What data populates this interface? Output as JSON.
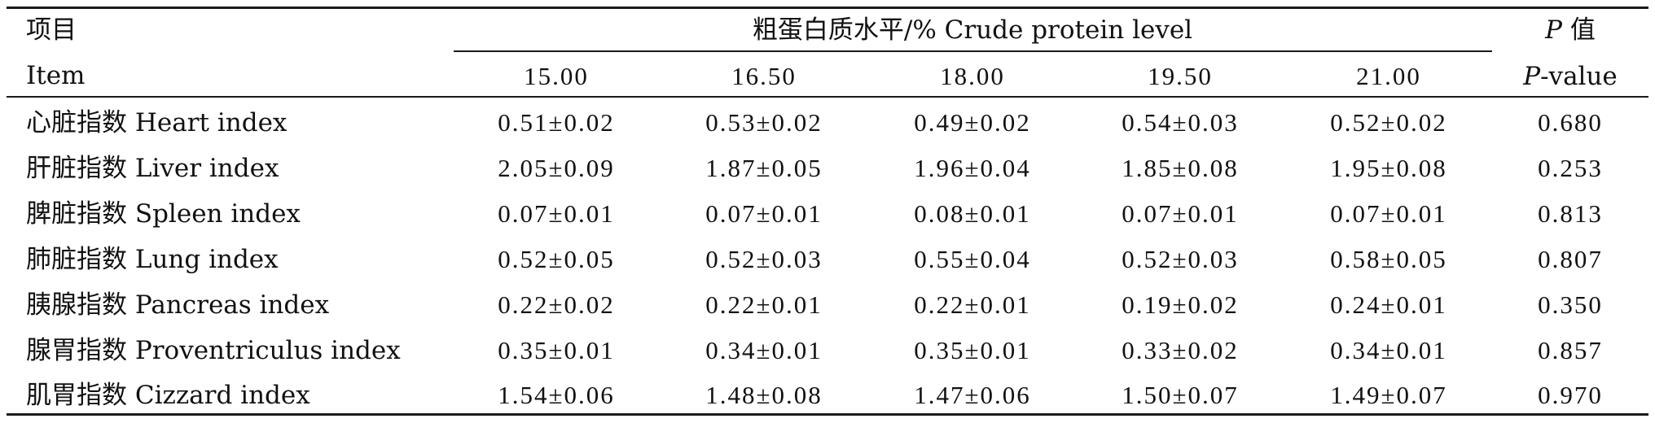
{
  "header": {
    "item_cn": "项目",
    "item_en": "Item",
    "group_title": "粗蛋白质水平/% Crude protein level",
    "levels": [
      "15.00",
      "16.50",
      "18.00",
      "19.50",
      "21.00"
    ],
    "p_cn_letter": "P",
    "p_cn_suffix": " 值",
    "p_en_letter": "P",
    "p_en_suffix": "-value"
  },
  "rows": [
    {
      "label": "心脏指数 Heart index",
      "values": [
        "0.51±0.02",
        "0.53±0.02",
        "0.49±0.02",
        "0.54±0.03",
        "0.52±0.02"
      ],
      "p": "0.680"
    },
    {
      "label": "肝脏指数 Liver index",
      "values": [
        "2.05±0.09",
        "1.87±0.05",
        "1.96±0.04",
        "1.85±0.08",
        "1.95±0.08"
      ],
      "p": "0.253"
    },
    {
      "label": "脾脏指数 Spleen index",
      "values": [
        "0.07±0.01",
        "0.07±0.01",
        "0.08±0.01",
        "0.07±0.01",
        "0.07±0.01"
      ],
      "p": "0.813"
    },
    {
      "label": "肺脏指数 Lung index",
      "values": [
        "0.52±0.05",
        "0.52±0.03",
        "0.55±0.04",
        "0.52±0.03",
        "0.58±0.05"
      ],
      "p": "0.807"
    },
    {
      "label": "胰腺指数 Pancreas index",
      "values": [
        "0.22±0.02",
        "0.22±0.01",
        "0.22±0.01",
        "0.19±0.02",
        "0.24±0.01"
      ],
      "p": "0.350"
    },
    {
      "label": "腺胃指数 Proventriculus index",
      "values": [
        "0.35±0.01",
        "0.34±0.01",
        "0.35±0.01",
        "0.33±0.02",
        "0.34±0.01"
      ],
      "p": "0.857"
    },
    {
      "label": "肌胃指数 Cizzard index",
      "values": [
        "1.54±0.06",
        "1.48±0.08",
        "1.47±0.06",
        "1.50±0.07",
        "1.49±0.07"
      ],
      "p": "0.970"
    }
  ]
}
